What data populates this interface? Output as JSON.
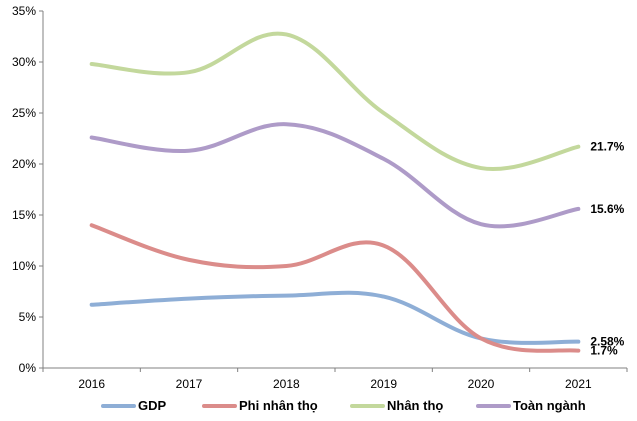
{
  "chart_data": {
    "type": "line",
    "title": "",
    "xlabel": "",
    "ylabel": "",
    "x": [
      "2016",
      "2017",
      "2018",
      "2019",
      "2020",
      "2021"
    ],
    "ylim": [
      0,
      35
    ],
    "yticks": [
      0,
      5,
      10,
      15,
      20,
      25,
      30,
      35
    ],
    "ytick_labels": [
      "0%",
      "5%",
      "10%",
      "15%",
      "20%",
      "25%",
      "30%",
      "35%"
    ],
    "grid": false,
    "legend_position": "bottom",
    "series": [
      {
        "name": "GDP",
        "color": "#8EAED6",
        "values": [
          6.2,
          6.8,
          7.1,
          7.0,
          2.9,
          2.58
        ],
        "end_label": "2.58%"
      },
      {
        "name": "Phi nhân thọ",
        "color": "#DB8C8A",
        "values": [
          14.0,
          10.6,
          10.0,
          12.0,
          2.9,
          1.7
        ],
        "end_label": "1.7%"
      },
      {
        "name": "Nhân thọ",
        "color": "#C3D89C",
        "values": [
          29.8,
          29.0,
          32.7,
          25.0,
          19.6,
          21.7
        ],
        "end_label": "21.7%"
      },
      {
        "name": "Toàn ngành",
        "color": "#AE9BC8",
        "values": [
          22.6,
          21.3,
          23.9,
          20.5,
          14.1,
          15.6
        ],
        "end_label": "15.6%"
      }
    ]
  }
}
